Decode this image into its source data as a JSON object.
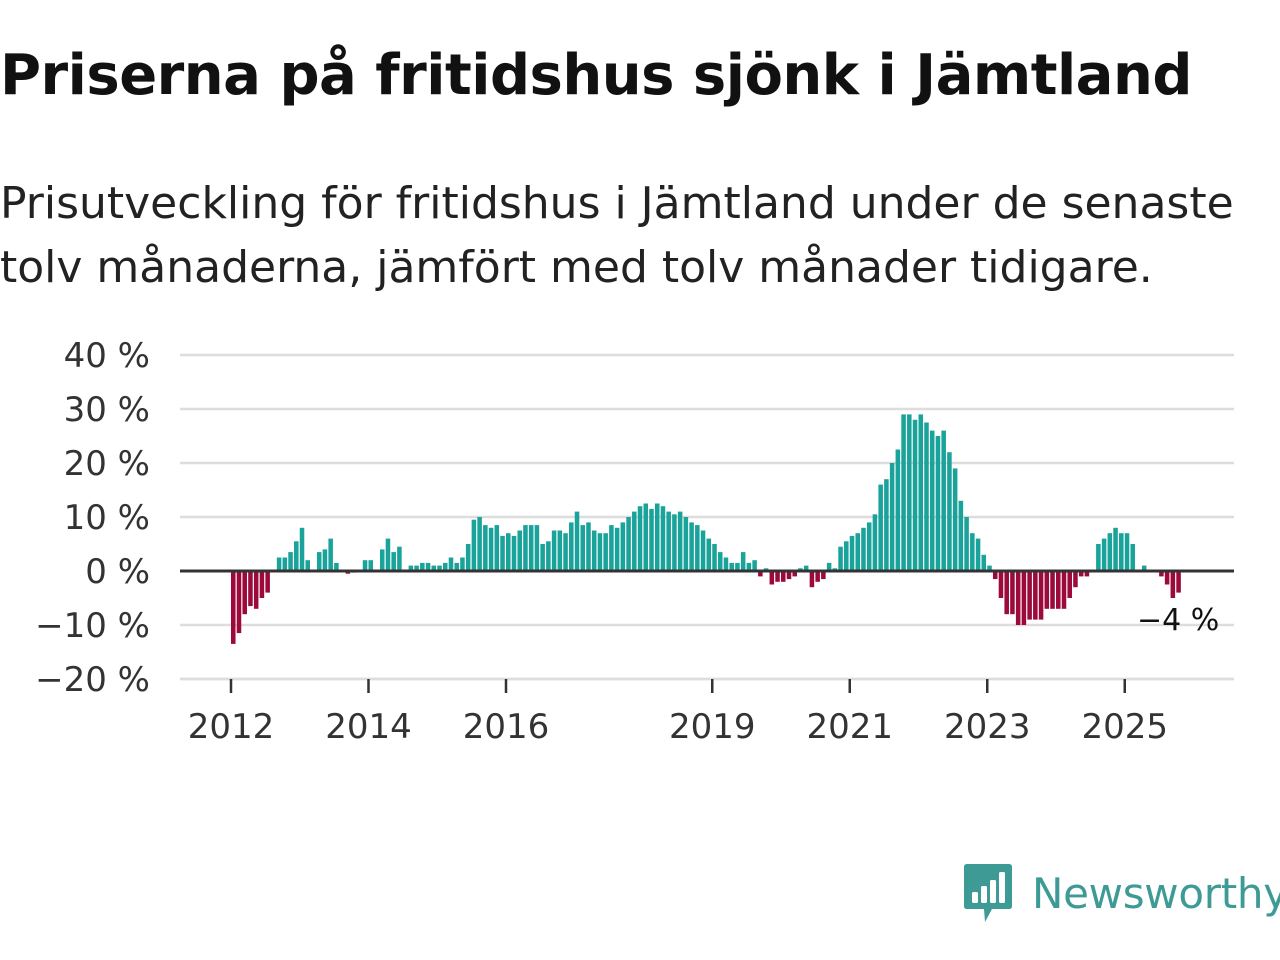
{
  "title": "Priserna på fritidshus sjönk i Jämtland",
  "subtitle": "Prisutveckling för fritidshus i Jämtland under de senaste tolv månaderna, jämfört med tolv månader tidigare.",
  "brand": {
    "name": "Newsworthy",
    "color": "#3d9a94",
    "icon": "newsworthy-logo-icon"
  },
  "colors": {
    "positive": "#1aa39a",
    "negative": "#9b0a3a",
    "grid": "#dddddd",
    "zero_line": "#333333"
  },
  "chart_data": {
    "type": "bar",
    "title": "Priserna på fritidshus sjönk i Jämtland",
    "xlabel": "",
    "ylabel": "",
    "ylim": [
      -20,
      40
    ],
    "y_ticks": [
      40,
      30,
      20,
      10,
      0,
      -10,
      -20
    ],
    "y_tick_labels": [
      "40 %",
      "30 %",
      "20 %",
      "10 %",
      "0 %",
      "−10 %",
      "−20 %"
    ],
    "x_ticks": [
      "2012",
      "2014",
      "2016",
      "2019",
      "2021",
      "2023",
      "2025"
    ],
    "start": "2012-01",
    "end": "2025-09",
    "grid": true,
    "annotation": {
      "text": "−4 %",
      "date": "2025-09",
      "value": -4
    },
    "series": [
      {
        "name": "2012",
        "values": [
          -13.5,
          -11.5,
          -8,
          -6.5,
          -7,
          -5,
          -4,
          0,
          2.5,
          2.5,
          3.5,
          5.5
        ]
      },
      {
        "name": "2013",
        "values": [
          8,
          2,
          0,
          3.5,
          4,
          6,
          1.5,
          0,
          -0.5,
          -0.3,
          0,
          2
        ]
      },
      {
        "name": "2014",
        "values": [
          2,
          0,
          4,
          6,
          3.5,
          4.5,
          0,
          1,
          1,
          1.5,
          1.5,
          1
        ]
      },
      {
        "name": "2015",
        "values": [
          1,
          1.5,
          2.5,
          1.5,
          2.5,
          5,
          9.5,
          10,
          8.5,
          8,
          8.5,
          6.5
        ]
      },
      {
        "name": "2016",
        "values": [
          7,
          6.5,
          7.5,
          8.5,
          8.5,
          8.5,
          5,
          5.5,
          7.5,
          7.5,
          7,
          9
        ]
      },
      {
        "name": "2017",
        "values": [
          11,
          8.5,
          9,
          7.5,
          7,
          7,
          8.5,
          8,
          9,
          10,
          11,
          12
        ]
      },
      {
        "name": "2018",
        "values": [
          12.5,
          11.5,
          12.5,
          12,
          11,
          10.5,
          11,
          10,
          9,
          8.5,
          7.5,
          6
        ]
      },
      {
        "name": "2019",
        "values": [
          5,
          3.5,
          2.5,
          1.5,
          1.5,
          3.5,
          1.5,
          2,
          -1,
          0.5,
          -2.5,
          -2
        ]
      },
      {
        "name": "2020",
        "values": [
          -2,
          -1.5,
          -1,
          0.5,
          1,
          -3,
          -2,
          -1.5,
          1.5,
          0.5,
          4.5,
          5.5
        ]
      },
      {
        "name": "2021",
        "values": [
          6.5,
          7,
          8,
          9,
          10.5,
          16,
          17,
          20,
          22.5,
          29,
          29,
          28
        ]
      },
      {
        "name": "2022",
        "values": [
          29,
          27.5,
          26,
          25,
          26,
          22,
          19,
          13,
          10,
          7,
          6,
          3
        ]
      },
      {
        "name": "2023",
        "values": [
          1,
          -1.5,
          -5,
          -8,
          -8,
          -10,
          -10,
          -9,
          -9,
          -9,
          -7,
          -7
        ]
      },
      {
        "name": "2024",
        "values": [
          -7,
          -7,
          -5,
          -3,
          -1,
          -1,
          0,
          5,
          6,
          7,
          8,
          7
        ]
      },
      {
        "name": "2025",
        "values": [
          7,
          5,
          0,
          1,
          0,
          0,
          -1,
          -2.5,
          -5,
          -4
        ]
      }
    ]
  }
}
